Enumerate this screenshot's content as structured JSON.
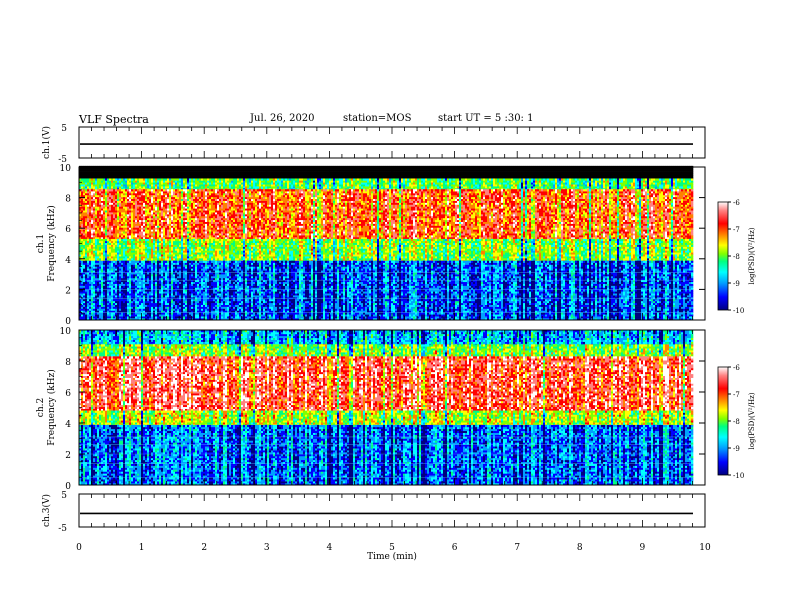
{
  "header": {
    "title": "VLF Spectra",
    "date": "Jul. 26, 2020",
    "station": "station=MOS",
    "start": "start UT = 5 :30: 1"
  },
  "chart_data": [
    {
      "type": "line",
      "name": "ch1-waveform",
      "ylabel": "ch.1(V)",
      "ylim": [
        -5,
        5
      ],
      "yticks": [
        "5",
        "-5"
      ],
      "xlim": [
        0,
        10
      ],
      "series": [
        {
          "values_constant": -0.5
        }
      ]
    },
    {
      "type": "heatmap",
      "name": "ch1-spectrogram",
      "ylabel": "ch.1 Frequency (kHz)",
      "ylim": [
        0,
        10
      ],
      "yticks": [
        "0",
        "2",
        "4",
        "6",
        "8",
        "10"
      ],
      "xlim": [
        0,
        9.85
      ],
      "intensity_bands_khz": [
        {
          "from": 9.2,
          "to": 10,
          "level": "none"
        },
        {
          "from": 8.5,
          "to": 9.2,
          "level": -8.2
        },
        {
          "from": 5.3,
          "to": 8.5,
          "level": -6.9
        },
        {
          "from": 3.8,
          "to": 5.3,
          "level": -8.0
        },
        {
          "from": 0,
          "to": 3.8,
          "level": -9.4
        }
      ],
      "colorbar": {
        "label": "log(PSD)(V²/Hz)",
        "min": -10,
        "max": -6,
        "ticks": [
          "-6",
          "-7",
          "-8",
          "-9",
          "-10"
        ]
      }
    },
    {
      "type": "heatmap",
      "name": "ch2-spectrogram",
      "ylabel": "ch.2 Frequency (kHz)",
      "ylim": [
        0,
        10
      ],
      "yticks": [
        "0",
        "2",
        "4",
        "6",
        "8",
        "10"
      ],
      "xlim": [
        0,
        9.85
      ],
      "intensity_bands_khz": [
        {
          "from": 9.0,
          "to": 10,
          "level": -9.0
        },
        {
          "from": 8.2,
          "to": 9.0,
          "level": -8.0
        },
        {
          "from": 4.8,
          "to": 8.2,
          "level": -6.6
        },
        {
          "from": 3.8,
          "to": 4.8,
          "level": -7.8
        },
        {
          "from": 0,
          "to": 3.8,
          "level": -9.3
        }
      ],
      "colorbar": {
        "label": "log(PSD)(V²/Hz)",
        "min": -10,
        "max": -6,
        "ticks": [
          "-6",
          "-7",
          "-8",
          "-9",
          "-10"
        ]
      }
    },
    {
      "type": "line",
      "name": "ch3-waveform",
      "ylabel": "ch.3(V)",
      "ylim": [
        -5,
        5
      ],
      "yticks": [
        "5",
        "-5"
      ],
      "xlim": [
        0,
        10
      ],
      "series": [
        {
          "values_constant": -0.9
        }
      ]
    }
  ],
  "xaxis": {
    "label": "Time (min)",
    "ticks": [
      "0",
      "1",
      "2",
      "3",
      "4",
      "5",
      "6",
      "7",
      "8",
      "9",
      "10"
    ]
  },
  "colors": {
    "colormap": [
      "#000080",
      "#0000ff",
      "#00a0ff",
      "#00ffff",
      "#00ff80",
      "#80ff00",
      "#ffff00",
      "#ff8000",
      "#ff0000",
      "#ff8080",
      "#ffffff"
    ]
  }
}
